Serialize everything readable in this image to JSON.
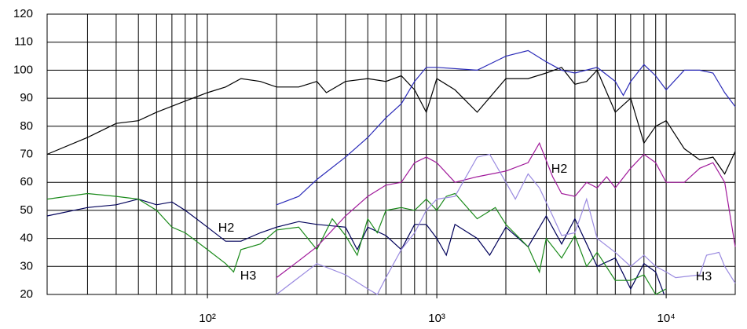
{
  "chart_data": {
    "type": "line",
    "xscale": "log",
    "grid": true,
    "xlim": [
      20,
      20000
    ],
    "ylim": [
      20,
      120
    ],
    "yticks": [
      20,
      30,
      40,
      50,
      60,
      70,
      80,
      90,
      100,
      110,
      120
    ],
    "xticks": [
      {
        "value": 100,
        "label": "10²"
      },
      {
        "value": 1000,
        "label": "10³"
      },
      {
        "value": 10000,
        "label": "10⁴"
      }
    ],
    "xgrid": [
      20,
      30,
      40,
      50,
      60,
      70,
      80,
      90,
      100,
      200,
      300,
      400,
      500,
      600,
      700,
      800,
      900,
      1000,
      2000,
      3000,
      4000,
      5000,
      6000,
      7000,
      8000,
      9000,
      10000,
      20000
    ],
    "annotations": [
      "H2",
      "H3",
      "H2",
      "H3"
    ],
    "series": [
      {
        "color": "#000000",
        "x": [
          20,
          30,
          40,
          50,
          60,
          80,
          100,
          120,
          140,
          170,
          200,
          250,
          300,
          330,
          400,
          500,
          600,
          700,
          800,
          900,
          1000,
          1200,
          1500,
          2000,
          2500,
          3000,
          3500,
          4000,
          4500,
          5000,
          6000,
          7000,
          8000,
          9000,
          10000,
          12000,
          14000,
          16000,
          18000,
          20000
        ],
        "values": [
          70,
          76,
          81,
          82,
          85,
          89,
          92,
          94,
          97,
          96,
          94,
          94,
          96,
          92,
          96,
          97,
          96,
          98,
          93,
          85,
          97,
          93,
          85,
          97,
          97,
          99,
          101,
          95,
          96,
          100,
          85,
          90,
          74,
          80,
          82,
          72,
          68,
          69,
          63,
          71
        ]
      },
      {
        "color": "#2a2ab8",
        "x": [
          200,
          250,
          300,
          400,
          500,
          600,
          700,
          800,
          900,
          1000,
          1500,
          2000,
          2500,
          3000,
          3500,
          4000,
          5000,
          6000,
          6500,
          7000,
          8000,
          9000,
          10000,
          12000,
          14000,
          16000,
          18000,
          20000
        ],
        "values": [
          52,
          55,
          61,
          69,
          76,
          83,
          88,
          96,
          101,
          101,
          100,
          105,
          107,
          103,
          100,
          99,
          101,
          96,
          91,
          96,
          102,
          98,
          93,
          100,
          100,
          99,
          92,
          87
        ]
      },
      {
        "color": "#00005a",
        "x": [
          20,
          30,
          40,
          50,
          60,
          70,
          80,
          100,
          120,
          140,
          170,
          200,
          250,
          300,
          400,
          450,
          500,
          600,
          700,
          800,
          900,
          1000,
          1100,
          1200,
          1500,
          1700,
          2000,
          2500,
          3000,
          3500,
          4000,
          5000,
          6000,
          7000,
          8000,
          9000,
          9800
        ],
        "values": [
          48,
          51,
          52,
          54,
          52,
          53,
          50,
          44,
          39,
          39,
          42,
          44,
          46,
          45,
          44,
          36,
          44,
          41,
          36,
          45,
          45,
          40,
          34,
          45,
          40,
          34,
          44,
          37,
          48,
          38,
          47,
          30,
          33,
          22,
          31,
          28,
          20
        ]
      },
      {
        "color": "#1a8a1a",
        "x": [
          20,
          30,
          40,
          50,
          60,
          70,
          80,
          100,
          120,
          130,
          140,
          170,
          200,
          250,
          300,
          350,
          400,
          450,
          500,
          550,
          600,
          700,
          800,
          900,
          1000,
          1100,
          1200,
          1500,
          1800,
          2000,
          2500,
          2800,
          3000,
          3500,
          4000,
          4500,
          5000,
          6000,
          7000,
          8000,
          9000,
          10000
        ],
        "values": [
          54,
          56,
          55,
          54,
          50,
          44,
          42,
          36,
          31,
          28,
          36,
          38,
          43,
          44,
          36,
          47,
          41,
          34,
          47,
          42,
          50,
          51,
          50,
          54,
          50,
          55,
          56,
          47,
          51,
          45,
          37,
          28,
          40,
          33,
          41,
          30,
          35,
          25,
          25,
          27,
          20,
          22
        ]
      },
      {
        "color": "#a0189a",
        "x": [
          200,
          250,
          300,
          400,
          500,
          600,
          700,
          800,
          900,
          1000,
          1200,
          1500,
          2000,
          2500,
          2800,
          3200,
          3500,
          4000,
          4500,
          5000,
          5500,
          6000,
          7000,
          8000,
          9000,
          10000,
          12000,
          14000,
          16000,
          18000,
          20000
        ],
        "values": [
          26,
          32,
          37,
          48,
          55,
          59,
          60,
          67,
          69,
          67,
          60,
          62,
          64,
          67,
          74,
          62,
          56,
          55,
          60,
          58,
          62,
          58,
          65,
          70,
          67,
          60,
          60,
          65,
          67,
          60,
          37
        ]
      },
      {
        "color": "#9a8ae0",
        "x": [
          200,
          300,
          400,
          500,
          550,
          600,
          700,
          800,
          900,
          1000,
          1200,
          1500,
          1700,
          2000,
          2200,
          2500,
          2800,
          3200,
          3500,
          4000,
          4500,
          5000,
          6000,
          7000,
          8000,
          9000,
          10000,
          11000,
          14000,
          15000,
          17000,
          18000,
          20000
        ],
        "values": [
          20,
          31,
          27,
          22,
          20,
          26,
          36,
          42,
          50,
          54,
          55,
          69,
          70,
          60,
          54,
          63,
          58,
          48,
          41,
          42,
          54,
          40,
          35,
          30,
          34,
          30,
          28,
          26,
          27,
          34,
          35,
          30,
          24
        ]
      }
    ]
  }
}
